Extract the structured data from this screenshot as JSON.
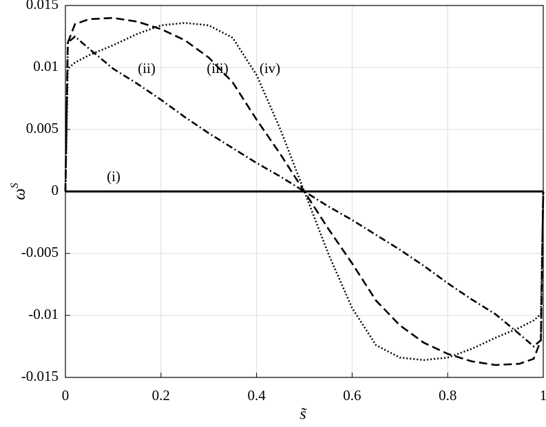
{
  "chart_data": {
    "type": "line",
    "x_label": "s̃",
    "y_label": {
      "base": "ω",
      "sup": "S"
    },
    "x": [
      0,
      0.005,
      0.02,
      0.05,
      0.1,
      0.15,
      0.2,
      0.25,
      0.3,
      0.35,
      0.4,
      0.45,
      0.5,
      0.55,
      0.6,
      0.65,
      0.7,
      0.75,
      0.8,
      0.85,
      0.9,
      0.95,
      0.98,
      0.995,
      1
    ],
    "series": [
      {
        "name": "(i)",
        "color": "#000000",
        "style": "solid",
        "values": [
          0,
          0,
          0,
          0,
          0,
          0,
          0,
          0,
          0,
          0,
          0,
          0,
          0,
          0,
          0,
          0,
          0,
          0,
          0,
          0,
          0,
          0,
          0,
          0,
          0
        ]
      },
      {
        "name": "(ii)",
        "color": "#000000",
        "style": "dashdot",
        "values": [
          0,
          0.012,
          0.0125,
          0.0115,
          0.0099,
          0.0087,
          0.0074,
          0.006,
          0.0047,
          0.0035,
          0.0023,
          0.0012,
          0,
          -0.0012,
          -0.0023,
          -0.0035,
          -0.0047,
          -0.006,
          -0.0074,
          -0.0087,
          -0.0099,
          -0.0115,
          -0.0125,
          -0.012,
          0
        ]
      },
      {
        "name": "(iii)",
        "color": "#000000",
        "style": "dashed",
        "values": [
          0,
          0.012,
          0.0135,
          0.0139,
          0.014,
          0.0137,
          0.0131,
          0.0122,
          0.0108,
          0.0088,
          0.0058,
          0.003,
          0,
          -0.003,
          -0.0058,
          -0.0088,
          -0.0108,
          -0.0122,
          -0.0131,
          -0.0137,
          -0.014,
          -0.0139,
          -0.0135,
          -0.012,
          0
        ]
      },
      {
        "name": "(iv)",
        "color": "#000000",
        "style": "dotted",
        "values": [
          0,
          0.0099,
          0.0104,
          0.011,
          0.0118,
          0.0127,
          0.0134,
          0.0136,
          0.0134,
          0.0124,
          0.0094,
          0.005,
          0,
          -0.005,
          -0.0094,
          -0.0124,
          -0.0134,
          -0.0136,
          -0.0134,
          -0.0127,
          -0.0118,
          -0.011,
          -0.0104,
          -0.0099,
          0
        ]
      }
    ],
    "xlim": [
      0,
      1
    ],
    "xticks": [
      0,
      0.2,
      0.4,
      0.6,
      0.8,
      1
    ],
    "ylim": [
      -0.015,
      0.015
    ],
    "yticks": [
      -0.015,
      -0.01,
      -0.005,
      0,
      0.005,
      0.01,
      0.015
    ],
    "grid": true
  }
}
